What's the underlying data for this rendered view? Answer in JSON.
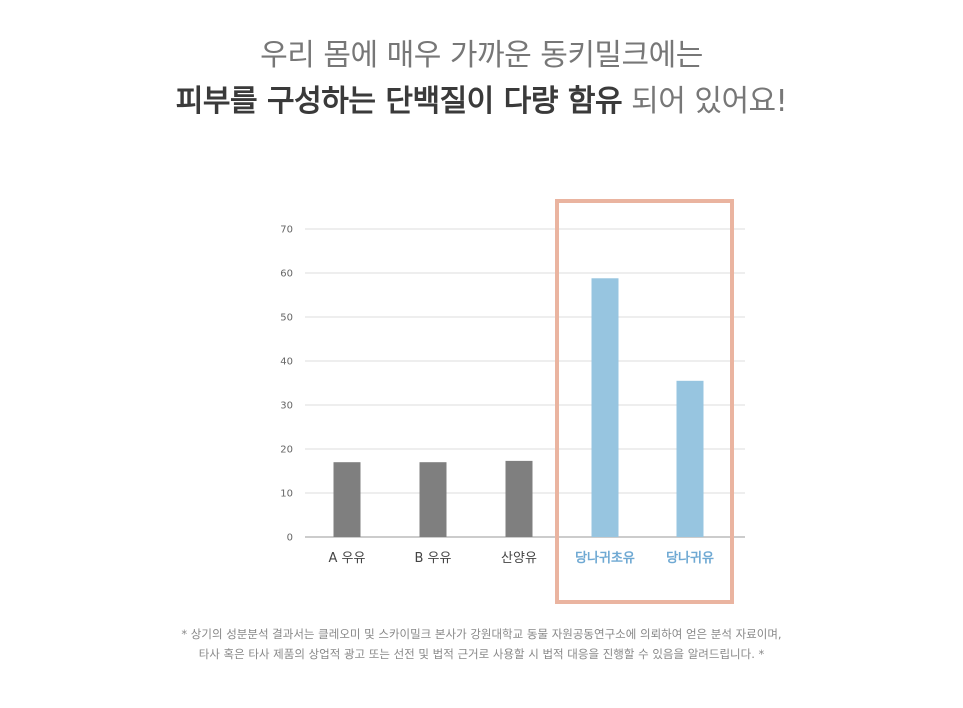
{
  "headline": {
    "line1": "우리 몸에 매우 가까운 동키밀크에는",
    "line2_bold": "피부를 구성하는 단백질이 다량 함유",
    "line2_rest": " 되어 있어요!"
  },
  "chart_data": {
    "type": "bar",
    "categories": [
      "A 우유",
      "B 우유",
      "산양유",
      "당나귀초유",
      "당나귀유"
    ],
    "values": [
      17,
      17,
      17.3,
      58.8,
      35.5
    ],
    "ylim": [
      0,
      70
    ],
    "yticks": [
      0,
      10,
      20,
      30,
      40,
      50,
      60,
      70
    ],
    "grid": true,
    "bar_colors": [
      "#7f7f7f",
      "#7f7f7f",
      "#7f7f7f",
      "#97c5e0",
      "#97c5e0"
    ],
    "label_colors": [
      "#444444",
      "#444444",
      "#444444",
      "#6fa9d3",
      "#6fa9d3"
    ],
    "highlight": {
      "categories": [
        "당나귀초유",
        "당나귀유"
      ],
      "color": "#eab4a0"
    }
  },
  "footnote": {
    "line1": "* 상기의 성분분석 결과서는 클레오미 및 스카이밀크 본사가 강원대학교 동물 자원공동연구소에 의뢰하여 얻은 분석 자료이며,",
    "line2": "타사 혹은 타사 제품의 상업적 광고 또는 선전 및 법적 근거로 사용할 시 법적 대응을 진행할 수 있음을 알려드립니다. *"
  }
}
